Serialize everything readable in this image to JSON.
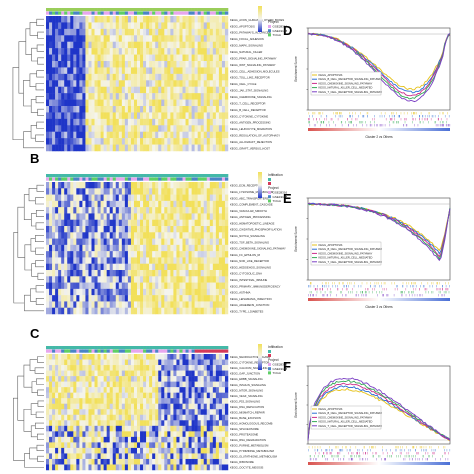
{
  "figure": {
    "panels": {
      "B": "B",
      "C": "C",
      "D": "D",
      "E": "E",
      "F": "F"
    }
  },
  "colors": {
    "heat_low": "#1f35c8",
    "heat_mid": "#f4f4ee",
    "heat_high": "#f2e05a",
    "annotation_low": "#44b9a8",
    "annotation_high": "#d43a5a",
    "project_a": "#e7a6ee",
    "project_b": "#4a84c6",
    "project_c": "#5fcf65",
    "grid_curve": "#33aa55"
  },
  "heatmaps": [
    {
      "id": "A",
      "legend_title": "",
      "legend_sub": "Project",
      "legend_items": [
        "GSE28316",
        "GSE19188",
        "TCGA"
      ],
      "row_labels": [
        "KEGG_AXON_GUIDANCE_OTHER_BOXES",
        "KEGG_APOPTOSIS",
        "KEGG_PATHWAYS_IN_CANCER",
        "KEGG_FOCAL_ADHESION",
        "KEGG_MAPK_SIGNALING",
        "KEGG_NATURAL_KILLER",
        "KEGG_PPAR_SIGNALING_PATHWAY",
        "KEGG_WNT_SIGNALING_PATHWAY",
        "KEGG_CELL_ADHESION_MOLECULES",
        "KEGG_TOLL_LIKE_RECEPTOR",
        "KEGG_CELL_CYCLE",
        "KEGG_JAK_STAT_SIGNALING",
        "KEGG_CHEMOKINE_SIGNALING",
        "KEGG_T_CELL_RECEPTOR",
        "KEGG_B_CELL_RECEPTOR",
        "KEGG_CYTOKINE_CYTOKINE",
        "KEGG_ANTIGEN_PROCESSING",
        "KEGG_LEUKOCYTE_MIGRATION",
        "KEGG_REGULATION_OF_AUTOPHAGY",
        "KEGG_ALLOGRAFT_REJECTION",
        "KEGG_GRAFT_VERSUS_HOST"
      ]
    },
    {
      "id": "B",
      "legend_title": "Infiltration",
      "legend_sub": "Project",
      "legend_items": [
        "GSE28316",
        "GSE19188",
        "TCGA"
      ],
      "row_labels": [
        "KEGG_ECM_RECEPTOR",
        "KEGG_LYSOSOME_METABOLISM",
        "KEGG_ABC_TRANSPORTERS",
        "KEGG_COMPLEMENT_CASCADE",
        "KEGG_VASCULAR_SMOOTH",
        "KEGG_ANTIGEN_PROCESSING",
        "KEGG_HEMATOPOIETIC_LINEAGE",
        "KEGG_OXIDATIVE_PHOSPHORYLATION",
        "KEGG_NOTCH_SIGNALING",
        "KEGG_TGF_BETA_SIGNALING",
        "KEGG_CHEMOKINE_SIGNALING_PATHWAY",
        "KEGG_FC_EPSILON_RI",
        "KEGG_NOD_LIKE_RECEPTOR",
        "KEGG_HEDGEHOG_SIGNALING",
        "KEGG_CYTOSOLIC_DNA",
        "KEGG_INTESTINAL_IMMUNE",
        "KEGG_PRIMARY_IMMUNODEFICIENCY",
        "KEGG_ASTHMA",
        "KEGG_LEISHMANIA_INFECTION",
        "KEGG_ADHERENS_JUNCTION",
        "KEGG_TYPE_I_DIABETES"
      ]
    },
    {
      "id": "C",
      "legend_title": "Infiltration",
      "legend_sub": "Project",
      "legend_items": [
        "GSE28316",
        "GSE19188",
        "TCGA"
      ],
      "row_labels": [
        "KEGG_NEUROACTIVE_LIGAND",
        "KEGG_CYTOKINE_RECEPTOR",
        "KEGG_CALCIUM_SIGNALING",
        "KEGG_GAP_JUNCTION",
        "KEGG_ERBB_SIGNALING",
        "KEGG_INSULIN_SIGNALING",
        "KEGG_MTOR_SIGNALING",
        "KEGG_VEGF_SIGNALING",
        "KEGG_P53_SIGNALING",
        "KEGG_DNA_REPLICATION",
        "KEGG_MISMATCH_REPAIR",
        "KEGG_BASE_EXCISION",
        "KEGG_HOMOLOGOUS_RECOMB",
        "KEGG_SPLICEOSOME",
        "KEGG_PROTEASOME",
        "KEGG_RNA_DEGRADATION",
        "KEGG_PURINE_METABOLISM",
        "KEGG_PYRIMIDINE_METABOLISM",
        "KEGG_GLUTATHIONE_METABOLISM",
        "KEGG_RIBOSOME",
        "KEGG_OOCYTE_MEIOSIS"
      ]
    }
  ],
  "gsea_panels": [
    {
      "id": "D",
      "ylabel": "Enrichment Score",
      "xlabel": "Cluster 2 vs Others",
      "legend": [
        "KEGG_APOPTOSIS",
        "KEGG_B_CELL_RECEPTOR_SIGNALING_PATHWAY",
        "KEGG_CHEMOKINE_SIGNALING_PATHWAY",
        "KEGG_NATURAL_KILLER_CELL_MEDIATED",
        "KEGG_T_CELL_RECEPTOR_SIGNALING_PATHWAY"
      ]
    },
    {
      "id": "E",
      "ylabel": "Enrichment Score",
      "xlabel": "Cluster 3 vs Others",
      "legend": [
        "KEGG_APOPTOSIS",
        "KEGG_B_CELL_RECEPTOR_SIGNALING_PATHWAY",
        "KEGG_CHEMOKINE_SIGNALING_PATHWAY",
        "KEGG_NATURAL_KILLER_CELL_MEDIATED",
        "KEGG_T_CELL_RECEPTOR_SIGNALING_PATHWAY"
      ]
    },
    {
      "id": "F",
      "ylabel": "Enrichment Score",
      "xlabel": "",
      "legend": [
        "KEGG_APOPTOSIS",
        "KEGG_B_CELL_RECEPTOR_SIGNALING_PATHWAY",
        "KEGG_CHEMOKINE_SIGNALING_PATHWAY",
        "KEGG_NATURAL_KILLER_CELL_MEDIATED",
        "KEGG_T_CELL_RECEPTOR_SIGNALING_PATHWAY"
      ]
    }
  ],
  "curve_colors": [
    "#e6c21a",
    "#2b6fd6",
    "#cc2b8a",
    "#33aa55",
    "#7b3fc4"
  ]
}
